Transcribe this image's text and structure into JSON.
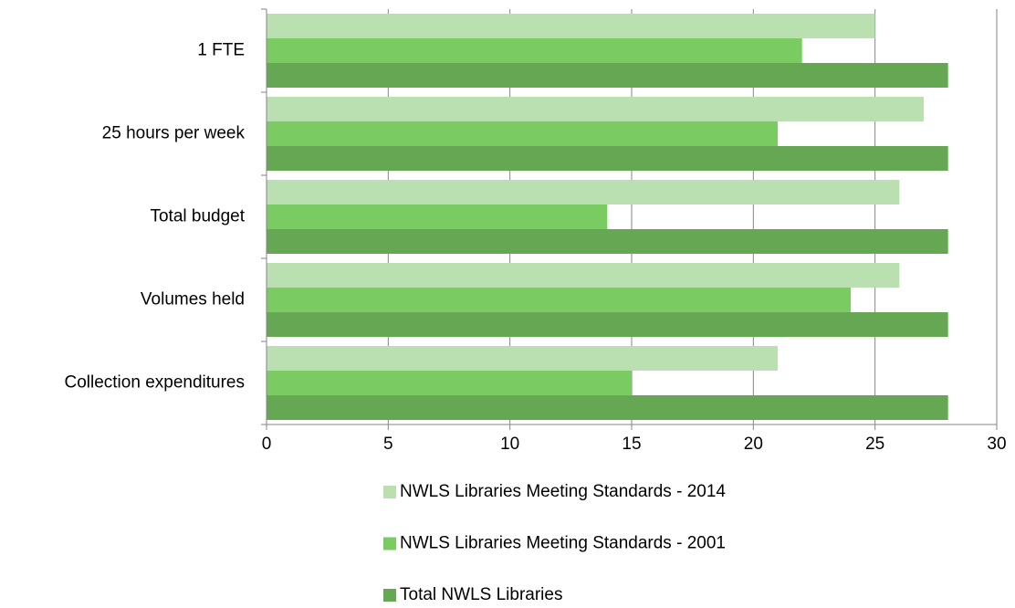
{
  "chart_data": {
    "type": "bar",
    "orientation": "horizontal",
    "categories": [
      "1 FTE",
      "25 hours per week",
      "Total budget",
      "Volumes held",
      "Collection expenditures"
    ],
    "series": [
      {
        "name": "NWLS Libraries Meeting Standards - 2014",
        "color": "#badfb1",
        "values": [
          25,
          27,
          26,
          26,
          21
        ]
      },
      {
        "name": "NWLS Libraries Meeting Standards - 2001",
        "color": "#7bcb63",
        "values": [
          22,
          21,
          14,
          24,
          15
        ]
      },
      {
        "name": "Total NWLS Libraries",
        "color": "#65a752",
        "values": [
          28,
          28,
          28,
          28,
          28
        ]
      }
    ],
    "xlim": [
      0,
      30
    ],
    "xticks": [
      0,
      5,
      10,
      15,
      20,
      25,
      30
    ],
    "grid": true,
    "legend": "bottom"
  }
}
